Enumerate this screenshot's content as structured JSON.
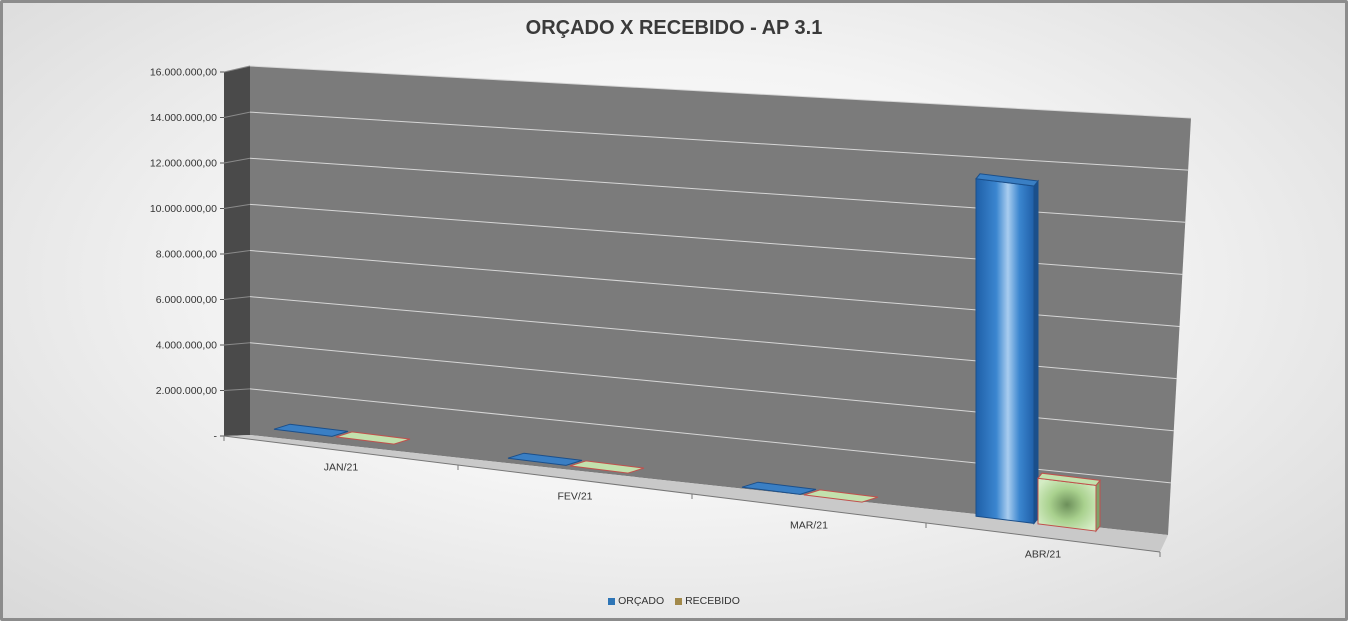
{
  "chart_data": {
    "type": "bar",
    "title": "ORÇADO X RECEBIDO - AP 3.1",
    "categories": [
      "JAN/21",
      "FEV/21",
      "MAR/21",
      "ABR/21"
    ],
    "series": [
      {
        "name": "ORÇADO",
        "color": "#2e75b6",
        "values": [
          0,
          0,
          0,
          13300000
        ]
      },
      {
        "name": "RECEBIDO",
        "color": "#a9d18e",
        "values": [
          0,
          0,
          0,
          1800000
        ]
      }
    ],
    "ylim": [
      0,
      16000000
    ],
    "yticks": [
      "-",
      "2.000.000,00",
      "4.000.000,00",
      "6.000.000,00",
      "8.000.000,00",
      "10.000.000,00",
      "12.000.000,00",
      "14.000.000,00",
      "16.000.000,00"
    ],
    "grid": true,
    "legend": "bottom",
    "view": "3d-perspective"
  }
}
